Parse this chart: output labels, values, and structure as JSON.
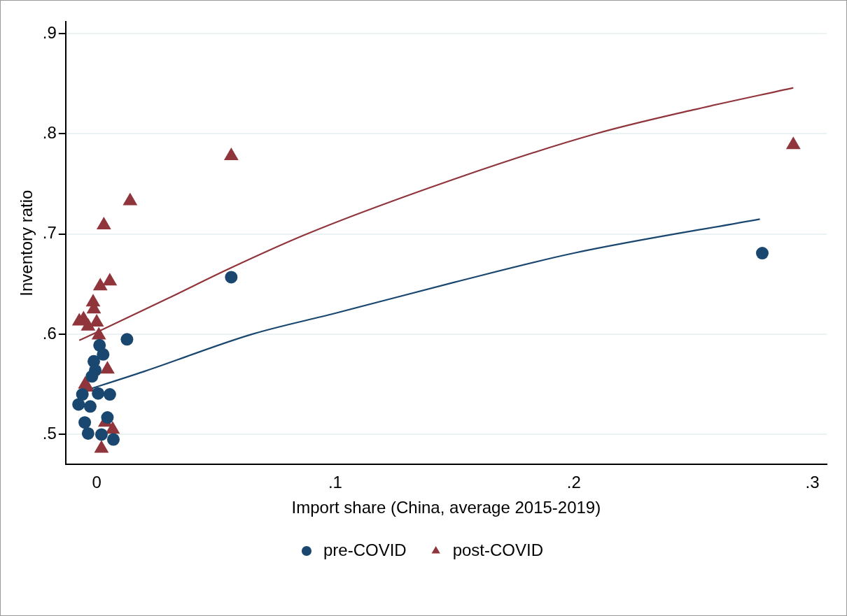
{
  "chart_data": {
    "type": "scatter",
    "xlabel": "Import share (China, average 2015-2019)",
    "ylabel": "Inventory ratio",
    "xlim": [
      -0.013,
      0.306
    ],
    "xticks": [
      {
        "value": 0,
        "label": "0"
      },
      {
        "value": 0.1,
        "label": ".1"
      },
      {
        "value": 0.2,
        "label": ".2"
      },
      {
        "value": 0.3,
        "label": ".3"
      }
    ],
    "ylim": [
      0.47,
      0.912
    ],
    "yticks": [
      {
        "value": 0.5,
        "label": ".5"
      },
      {
        "value": 0.6,
        "label": ".6"
      },
      {
        "value": 0.7,
        "label": ".7"
      },
      {
        "value": 0.8,
        "label": ".8"
      },
      {
        "value": 0.9,
        "label": ".9"
      }
    ],
    "grid": "y",
    "legend": "bottom",
    "series": [
      {
        "name": "pre-COVID",
        "marker": "circle",
        "color": "#1a476f",
        "x": [
          0.0012,
          0.0027,
          -0.0012,
          -0.0006,
          -0.002,
          0.0006,
          0.0055,
          -0.0076,
          -0.006,
          -0.0027,
          -0.005,
          -0.0036,
          0.002,
          0.0045,
          0.007,
          0.0127,
          0.0564,
          0.279
        ],
        "values": [
          0.589,
          0.58,
          0.573,
          0.564,
          0.558,
          0.541,
          0.54,
          0.53,
          0.54,
          0.528,
          0.512,
          0.501,
          0.5,
          0.517,
          0.495,
          0.595,
          0.657,
          0.681
        ]
      },
      {
        "name": "post-COVID",
        "marker": "triangle",
        "color": "#90353b",
        "x": [
          -0.0073,
          -0.0055,
          -0.0036,
          -0.0015,
          -0.0012,
          0,
          0.0009,
          0.0015,
          0.0055,
          0.003,
          0.014,
          0.0564,
          0.292,
          0.0045,
          -0.0048,
          -0.004,
          0.0036,
          0.0067,
          0.002
        ],
        "values": [
          0.613,
          0.615,
          0.608,
          0.632,
          0.625,
          0.612,
          0.599,
          0.648,
          0.653,
          0.709,
          0.733,
          0.778,
          0.789,
          0.565,
          0.55,
          0.547,
          0.512,
          0.505,
          0.486
        ]
      },
      {
        "type": "line",
        "marker": "none",
        "color": "#1a476f",
        "x": [
          -0.0073,
          0.02,
          0.065,
          0.1,
          0.15,
          0.2,
          0.278
        ],
        "values": [
          0.542,
          0.563,
          0.6,
          0.621,
          0.652,
          0.681,
          0.715
        ]
      },
      {
        "type": "line",
        "marker": "none",
        "color": "#90353b",
        "x": [
          -0.0073,
          0,
          0.03,
          0.056,
          0.088,
          0.15,
          0.209,
          0.25,
          0.292
        ],
        "values": [
          0.594,
          0.602,
          0.636,
          0.666,
          0.7,
          0.755,
          0.8,
          0.824,
          0.846
        ]
      }
    ]
  }
}
